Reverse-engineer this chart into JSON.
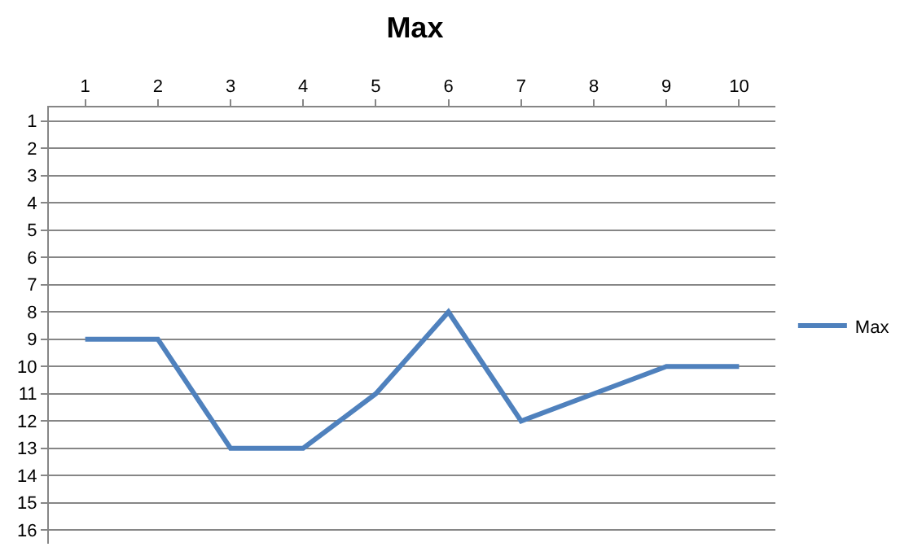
{
  "chart_data": {
    "type": "line",
    "title": "Max",
    "categories": [
      "1",
      "2",
      "3",
      "4",
      "5",
      "6",
      "7",
      "8",
      "9",
      "10"
    ],
    "series": [
      {
        "name": "Max",
        "color": "#4f81bd",
        "values": [
          9,
          9,
          13,
          13,
          11,
          8,
          12,
          11,
          10,
          10
        ]
      }
    ],
    "ylim": [
      16.5,
      0.5
    ],
    "yticks": [
      1,
      2,
      3,
      4,
      5,
      6,
      7,
      8,
      9,
      10,
      11,
      12,
      13,
      14,
      15,
      16
    ],
    "grid": "y",
    "legend": "right",
    "marker": "none",
    "line_style": "solid"
  }
}
